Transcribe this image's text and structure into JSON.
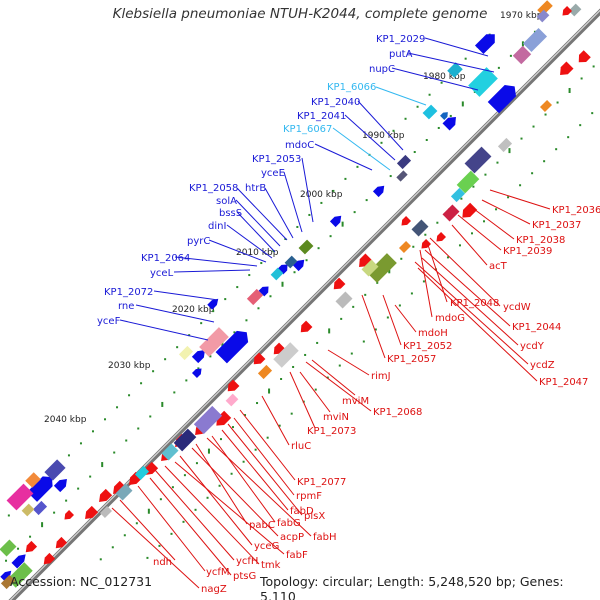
{
  "header": {
    "title": "Klebsiella pneumoniae NTUH-K2044, complete genome"
  },
  "footer": {
    "accession": "Accession: NC_012731",
    "stats": "Topology: circular; Length: 5,248,520 bp; Genes: 5,110"
  },
  "colors": {
    "forward_label": "#1a1ad6",
    "forward_label_light": "#33b8f0",
    "reverse_label": "#dd1111",
    "forward_gene": "#0a0ae8",
    "reverse_gene": "#ee1111",
    "rna_gene": "#1565c0",
    "backbone": "#777777",
    "tick": "#2a8a2a"
  },
  "ticks": [
    "1970 kbp",
    "1980 kbp",
    "1990 kbp",
    "2000 kbp",
    "2010 kbp",
    "2020 kbp",
    "2030 kbp",
    "2040 kbp"
  ],
  "forward_labels": [
    {
      "text": "KP1_2029",
      "tone": "dark"
    },
    {
      "text": "putA",
      "tone": "dark"
    },
    {
      "text": "nupC",
      "tone": "dark"
    },
    {
      "text": "KP1_6066",
      "tone": "light"
    },
    {
      "text": "KP1_2040",
      "tone": "dark"
    },
    {
      "text": "KP1_2041",
      "tone": "dark"
    },
    {
      "text": "KP1_6067",
      "tone": "light"
    },
    {
      "text": "mdoC",
      "tone": "dark"
    },
    {
      "text": "KP1_2053",
      "tone": "dark"
    },
    {
      "text": "yceE",
      "tone": "dark"
    },
    {
      "text": "htrB",
      "tone": "dark"
    },
    {
      "text": "KP1_2058",
      "tone": "dark"
    },
    {
      "text": "solA",
      "tone": "dark"
    },
    {
      "text": "bssS",
      "tone": "dark"
    },
    {
      "text": "dinI",
      "tone": "dark"
    },
    {
      "text": "pyrC",
      "tone": "dark"
    },
    {
      "text": "KP1_2064",
      "tone": "dark"
    },
    {
      "text": "yceL",
      "tone": "dark"
    },
    {
      "text": "KP1_2072",
      "tone": "dark"
    },
    {
      "text": "rne",
      "tone": "dark"
    },
    {
      "text": "yceF",
      "tone": "dark"
    }
  ],
  "reverse_labels": [
    "KP1_2036",
    "KP1_2037",
    "KP1_2038",
    "KP1_2039",
    "acT",
    "ycdW",
    "KP1_2048",
    "mdoG",
    "KP1_2044",
    "mdoH",
    "ycdY",
    "KP1_2052",
    "ycdZ",
    "KP1_2047",
    "KP1_2057",
    "rimJ",
    "mviM",
    "KP1_2068",
    "mviN",
    "KP1_2073",
    "rluC",
    "KP1_2077",
    "rpmF",
    "plsX",
    "fabD",
    "fabG",
    "fabH",
    "pabC",
    "acpP",
    "yceG",
    "fabF",
    "tmk",
    "ycfH",
    "ptsG",
    "ycfM",
    "ndh",
    "nagZ"
  ]
}
